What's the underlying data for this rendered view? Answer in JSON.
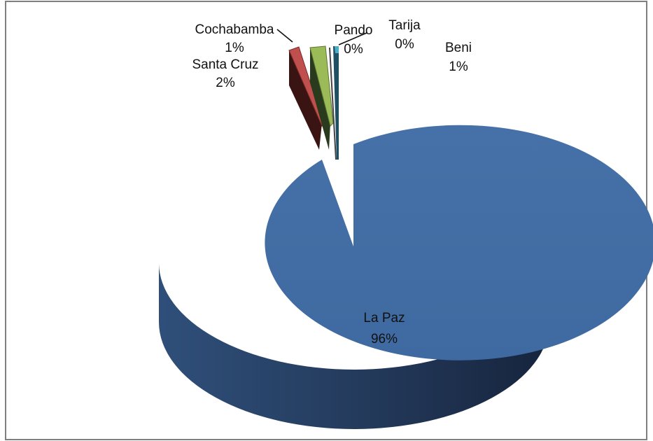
{
  "chart_data": {
    "type": "pie",
    "title": "",
    "three_d": true,
    "legend": "none",
    "slices": [
      {
        "label": "La Paz",
        "percent_label": "96%",
        "value": 96,
        "color": "#4770a8",
        "exploded": false
      },
      {
        "label": "Santa Cruz",
        "percent_label": "2%",
        "value": 2,
        "color": "#c0504d",
        "exploded": true
      },
      {
        "label": "Cochabamba",
        "percent_label": "1%",
        "value": 1,
        "color": "#9bbb59",
        "exploded": true
      },
      {
        "label": "Pando",
        "percent_label": "0%",
        "value": 0.2,
        "color": "#7f7f7f",
        "exploded": true
      },
      {
        "label": "Tarija",
        "percent_label": "0%",
        "value": 0.3,
        "color": "#4bacc6",
        "exploded": true
      },
      {
        "label": "Beni",
        "percent_label": "1%",
        "value": 0.5,
        "color": "#8064a2",
        "exploded": true
      }
    ]
  }
}
